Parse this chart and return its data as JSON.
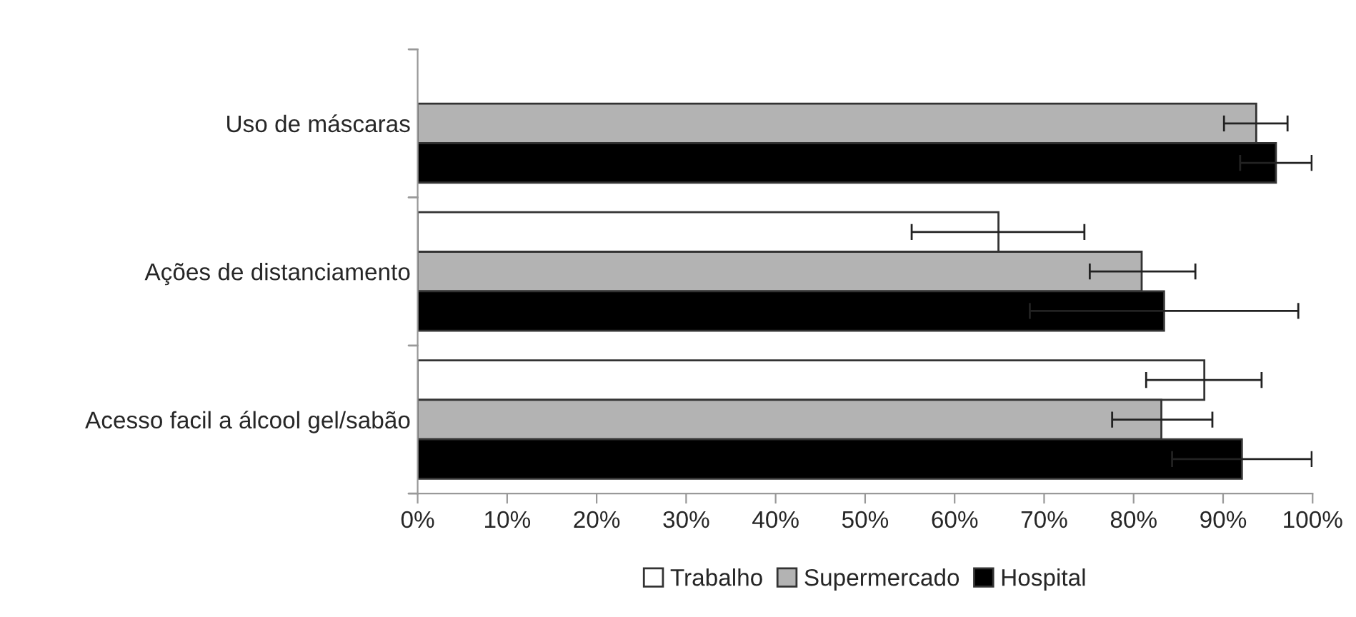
{
  "chart_data": {
    "type": "bar",
    "orientation": "horizontal",
    "categories": [
      "Uso de máscaras",
      "Ações de distanciamento",
      "Acesso facil a álcool gel/sabão"
    ],
    "series": [
      {
        "name": "Trabalho",
        "color": "#ffffff",
        "values": [
          null,
          64.9,
          87.9
        ],
        "errors": [
          null,
          [
            55.2,
            74.5
          ],
          [
            81.4,
            94.3
          ]
        ]
      },
      {
        "name": "Supermercado",
        "color": "#b3b3b3",
        "values": [
          93.7,
          80.9,
          83.1
        ],
        "errors": [
          [
            90.1,
            97.2
          ],
          [
            75.1,
            86.9
          ],
          [
            77.6,
            88.8
          ]
        ]
      },
      {
        "name": "Hospital",
        "color": "#000000",
        "values": [
          95.9,
          83.4,
          92.1
        ],
        "errors": [
          4,
          15,
          7.8
        ]
      }
    ],
    "xlim": [
      0,
      100
    ],
    "xticks": [
      {
        "value": 0,
        "label": "0%"
      },
      {
        "value": 10,
        "label": "10%"
      },
      {
        "value": 20,
        "label": "20%"
      },
      {
        "value": 30,
        "label": "30%"
      },
      {
        "value": 40,
        "label": "40%"
      },
      {
        "value": 50,
        "label": "50%"
      },
      {
        "value": 60,
        "label": "60%"
      },
      {
        "value": 70,
        "label": "70%"
      },
      {
        "value": 80,
        "label": "80%"
      },
      {
        "value": 90,
        "label": "90%"
      },
      {
        "value": 100,
        "label": "100%"
      }
    ],
    "legend": "bottom",
    "grid": false
  }
}
